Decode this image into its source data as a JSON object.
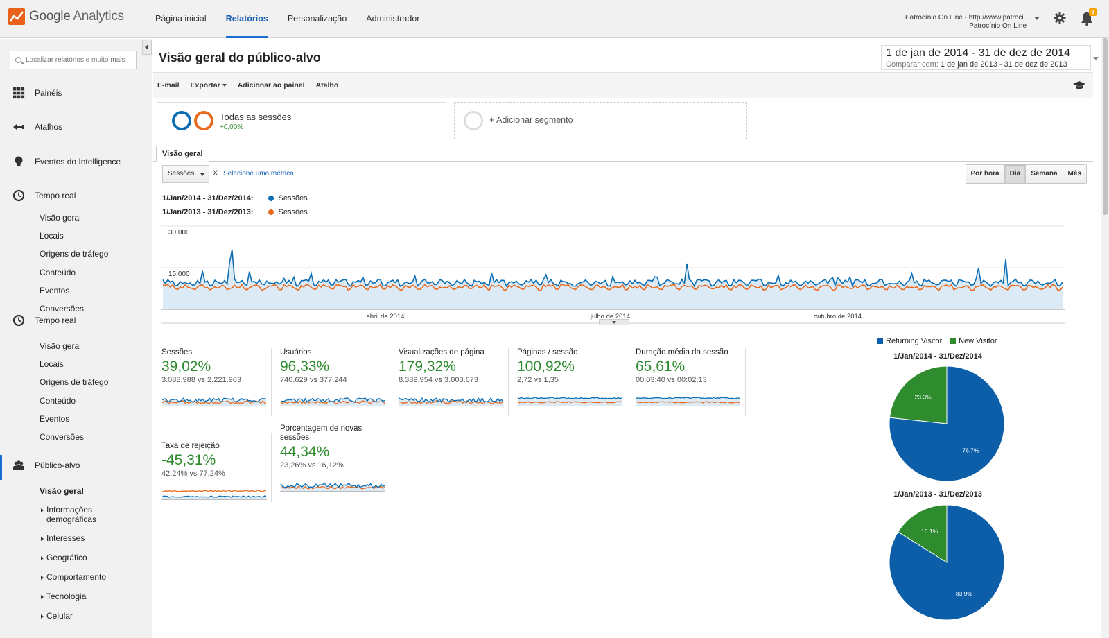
{
  "app": {
    "brand_primary": "Google",
    "brand_secondary": "Analytics"
  },
  "topnav": [
    {
      "label": "Página inicial",
      "active": false
    },
    {
      "label": "Relatórios",
      "active": true
    },
    {
      "label": "Personalização",
      "active": false
    },
    {
      "label": "Administrador",
      "active": false
    }
  ],
  "account": {
    "line1": "Patrocínio On Line - http://www.patroci...",
    "line2": "Patrocínio On Line",
    "notification_count": "3"
  },
  "sidebar": {
    "search_placeholder": "Localizar relatórios e muito mais",
    "sections": [
      {
        "label": "Painéis",
        "icon": "grid-icon"
      },
      {
        "label": "Atalhos",
        "icon": "arrow-shortcut-icon"
      },
      {
        "label": "Eventos do Intelligence",
        "icon": "lightbulb-icon"
      },
      {
        "label": "Tempo real",
        "icon": "clock-icon"
      }
    ],
    "realtime_items": [
      "Visão geral",
      "Locais",
      "Origens de tráfego",
      "Conteúdo",
      "Eventos",
      "Conversões"
    ],
    "section_realtime2": "Tempo real",
    "realtime_items2": [
      "Visão geral",
      "Locais",
      "Origens de tráfego",
      "Conteúdo",
      "Eventos",
      "Conversões"
    ],
    "audience": {
      "label": "Público-alvo",
      "icon": "people-icon"
    },
    "audience_items": [
      {
        "label": "Visão geral",
        "bold": true
      },
      {
        "label": "Informações demográficas",
        "line1": "Informações",
        "line2": "demográficas"
      },
      {
        "label": "Interesses"
      },
      {
        "label": "Geográfico"
      },
      {
        "label": "Comportamento"
      },
      {
        "label": "Tecnologia"
      },
      {
        "label": "Celular"
      }
    ]
  },
  "main": {
    "title": "Visão geral do público-alvo",
    "date_range": "1 de jan de 2014 - 31 de dez de 2014",
    "compare_label": "Comparar com:",
    "compare_range": "1 de jan de 2013 - 31 de dez de 2013",
    "actions": [
      "E-mail",
      "Exportar",
      "Adicionar ao painel",
      "Atalho"
    ],
    "segment": {
      "name": "Todas as sessões",
      "change": "+0,00%"
    },
    "add_segment": "+ Adicionar segmento",
    "tab": "Visão geral",
    "metric": "Sessões",
    "vs": "X",
    "select_metric": "Selecione uma métrica",
    "granularity": [
      {
        "label": "Por hora",
        "selected": false
      },
      {
        "label": "Dia",
        "selected": true
      },
      {
        "label": "Semana",
        "selected": false
      },
      {
        "label": "Mês",
        "selected": false
      }
    ],
    "legend": [
      {
        "period": "1/Jan/2014 - 31/Dez/2014:",
        "series": "Sessões",
        "color": "#0b6db3"
      },
      {
        "period": "1/Jan/2013 - 31/Dez/2013:",
        "series": "Sessões",
        "color": "#e86b1f"
      }
    ]
  },
  "colors": {
    "blue": "#0b6db3",
    "orange": "#e86b1f",
    "green": "#2d8a2d",
    "pie_blue": "#0d5ea8",
    "pie_green": "#2e8b2e"
  },
  "scorecards": [
    {
      "title": "Sessões",
      "pct": "39,02%",
      "vs": "3.088.988 vs 2.221.963"
    },
    {
      "title": "Usuários",
      "pct": "96,33%",
      "vs": "740.629 vs 377.244"
    },
    {
      "title": "Visualizações de página",
      "pct": "179,32%",
      "vs": "8.389.954 vs 3.003.673"
    },
    {
      "title": "Páginas / sessão",
      "pct": "100,92%",
      "vs": "2,72 vs 1,35"
    },
    {
      "title": "Duração média da sessão",
      "pct": "65,61%",
      "vs": "00:03:40 vs 00:02:13"
    },
    {
      "title": "Taxa de rejeição",
      "pct": "-45,31%",
      "vs": "42,24% vs 77,24%"
    },
    {
      "title": "Porcentagem de novas sessões",
      "title_line1": "Porcentagem de novas",
      "title_line2": "sessões",
      "pct": "44,34%",
      "vs": "23,26% vs 16,12%"
    }
  ],
  "chart_data": [
    {
      "type": "line",
      "x_ticks": [
        "abril de 2014",
        "julho de 2014",
        "outubro de 2014"
      ],
      "y_ticks": [
        "30.000",
        "15.000"
      ],
      "ylim": [
        0,
        30000
      ],
      "series": [
        {
          "name": "Sessões",
          "color": "#0b6db3"
        },
        {
          "name": "Sessões",
          "color": "#e86b1f"
        }
      ],
      "note": "daily sessions series, values approximated in script"
    },
    {
      "type": "pie",
      "title": "1/Jan/2014 - 31/Dez/2014",
      "legend": [
        "Returning Visitor",
        "New Visitor"
      ],
      "values": [
        76.7,
        23.3
      ],
      "labels": [
        "76.7%",
        "23.3%"
      ]
    },
    {
      "type": "pie",
      "title": "1/Jan/2013 - 31/Dez/2013",
      "legend": [
        "Returning Visitor",
        "New Visitor"
      ],
      "values": [
        83.9,
        16.1
      ],
      "labels": [
        "83.9%",
        "16.1%"
      ]
    }
  ]
}
